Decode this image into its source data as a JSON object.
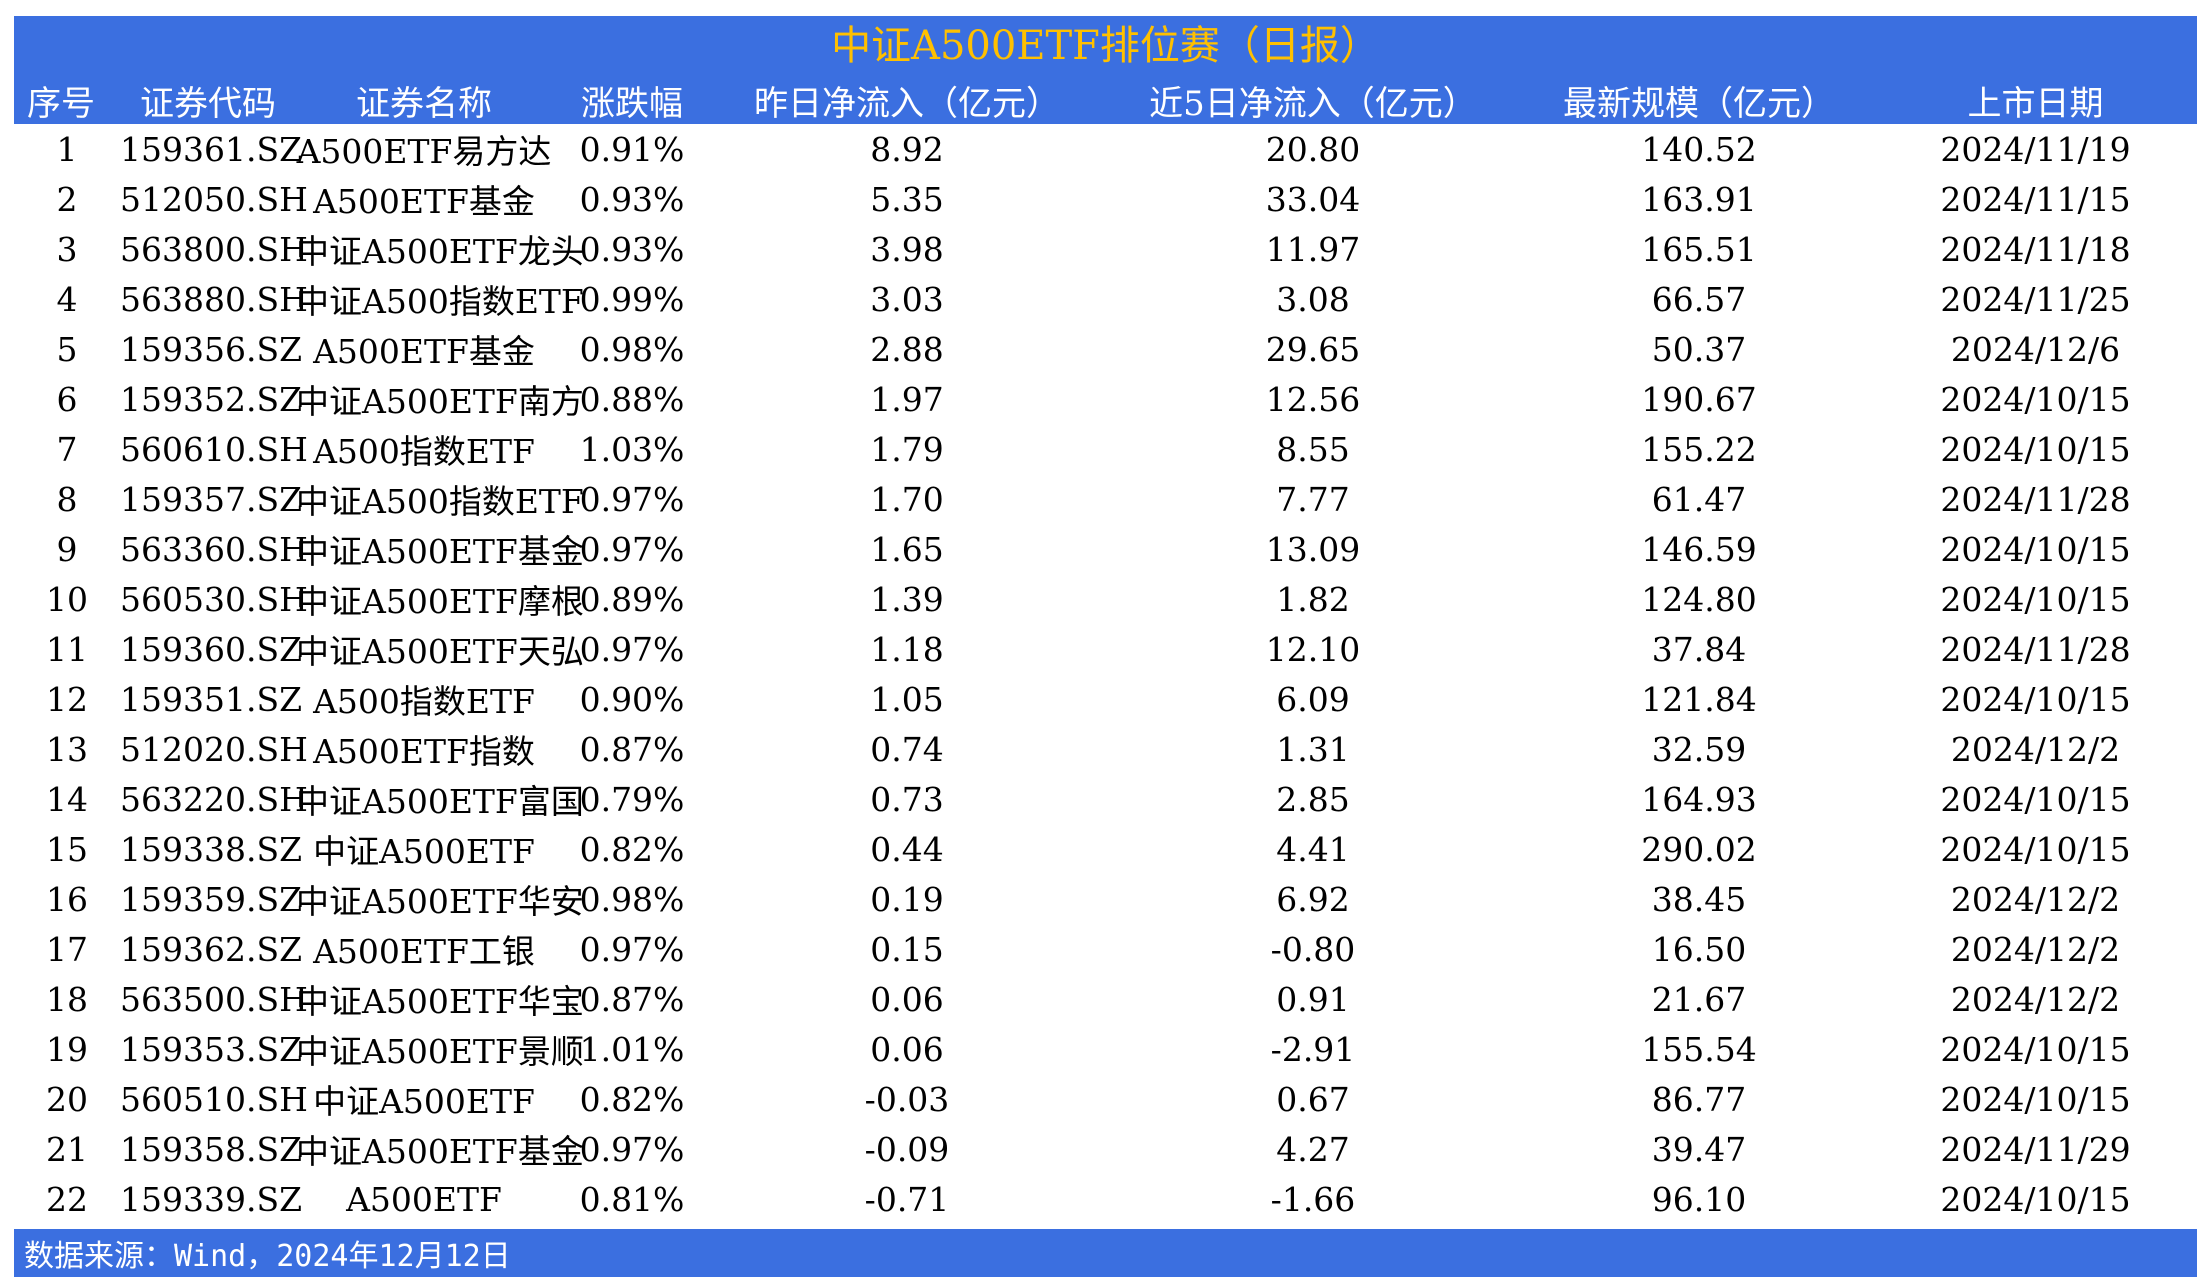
{
  "title": "中证A500ETF排位赛（日报）",
  "headers": [
    "序号",
    "证券代码",
    "证券名称",
    "涨跌幅",
    "昨日净流入（亿元）",
    "近5日净流入（亿元）",
    "最新规模（亿元）",
    "上市日期"
  ],
  "rows": [
    [
      "1",
      "159361.SZ",
      "A500ETF易方达",
      "0.91%",
      "8.92",
      "20.80",
      "140.52",
      "2024/11/19"
    ],
    [
      "2",
      "512050.SH",
      "A500ETF基金",
      "0.93%",
      "5.35",
      "33.04",
      "163.91",
      "2024/11/15"
    ],
    [
      "3",
      "563800.SH",
      "中证A500ETF龙头",
      "0.93%",
      "3.98",
      "11.97",
      "165.51",
      "2024/11/18"
    ],
    [
      "4",
      "563880.SH",
      "中证A500指数ETF",
      "0.99%",
      "3.03",
      "3.08",
      "66.57",
      "2024/11/25"
    ],
    [
      "5",
      "159356.SZ",
      "A500ETF基金",
      "0.98%",
      "2.88",
      "29.65",
      "50.37",
      "2024/12/6"
    ],
    [
      "6",
      "159352.SZ",
      "中证A500ETF南方",
      "0.88%",
      "1.97",
      "12.56",
      "190.67",
      "2024/10/15"
    ],
    [
      "7",
      "560610.SH",
      "A500指数ETF",
      "1.03%",
      "1.79",
      "8.55",
      "155.22",
      "2024/10/15"
    ],
    [
      "8",
      "159357.SZ",
      "中证A500指数ETF",
      "0.97%",
      "1.70",
      "7.77",
      "61.47",
      "2024/11/28"
    ],
    [
      "9",
      "563360.SH",
      "中证A500ETF基金",
      "0.97%",
      "1.65",
      "13.09",
      "146.59",
      "2024/10/15"
    ],
    [
      "10",
      "560530.SH",
      "中证A500ETF摩根",
      "0.89%",
      "1.39",
      "1.82",
      "124.80",
      "2024/10/15"
    ],
    [
      "11",
      "159360.SZ",
      "中证A500ETF天弘",
      "0.97%",
      "1.18",
      "12.10",
      "37.84",
      "2024/11/28"
    ],
    [
      "12",
      "159351.SZ",
      "A500指数ETF",
      "0.90%",
      "1.05",
      "6.09",
      "121.84",
      "2024/10/15"
    ],
    [
      "13",
      "512020.SH",
      "A500ETF指数",
      "0.87%",
      "0.74",
      "1.31",
      "32.59",
      "2024/12/2"
    ],
    [
      "14",
      "563220.SH",
      "中证A500ETF富国",
      "0.79%",
      "0.73",
      "2.85",
      "164.93",
      "2024/10/15"
    ],
    [
      "15",
      "159338.SZ",
      "中证A500ETF",
      "0.82%",
      "0.44",
      "4.41",
      "290.02",
      "2024/10/15"
    ],
    [
      "16",
      "159359.SZ",
      "中证A500ETF华安",
      "0.98%",
      "0.19",
      "6.92",
      "38.45",
      "2024/12/2"
    ],
    [
      "17",
      "159362.SZ",
      "A500ETF工银",
      "0.97%",
      "0.15",
      "-0.80",
      "16.50",
      "2024/12/2"
    ],
    [
      "18",
      "563500.SH",
      "中证A500ETF华宝",
      "0.87%",
      "0.06",
      "0.91",
      "21.67",
      "2024/12/2"
    ],
    [
      "19",
      "159353.SZ",
      "中证A500ETF景顺",
      "1.01%",
      "0.06",
      "-2.91",
      "155.54",
      "2024/10/15"
    ],
    [
      "20",
      "560510.SH",
      "中证A500ETF",
      "0.82%",
      "-0.03",
      "0.67",
      "86.77",
      "2024/10/15"
    ],
    [
      "21",
      "159358.SZ",
      "中证A500ETF基金",
      "0.97%",
      "-0.09",
      "4.27",
      "39.47",
      "2024/11/29"
    ],
    [
      "22",
      "159339.SZ",
      "A500ETF",
      "0.81%",
      "-0.71",
      "-1.66",
      "96.10",
      "2024/10/15"
    ]
  ],
  "footer": "数据来源：Wind，2024年12月12日",
  "colors": {
    "bar": "#3b6fe0",
    "title_text": "#ffc000",
    "header_text": "#ffffff"
  }
}
